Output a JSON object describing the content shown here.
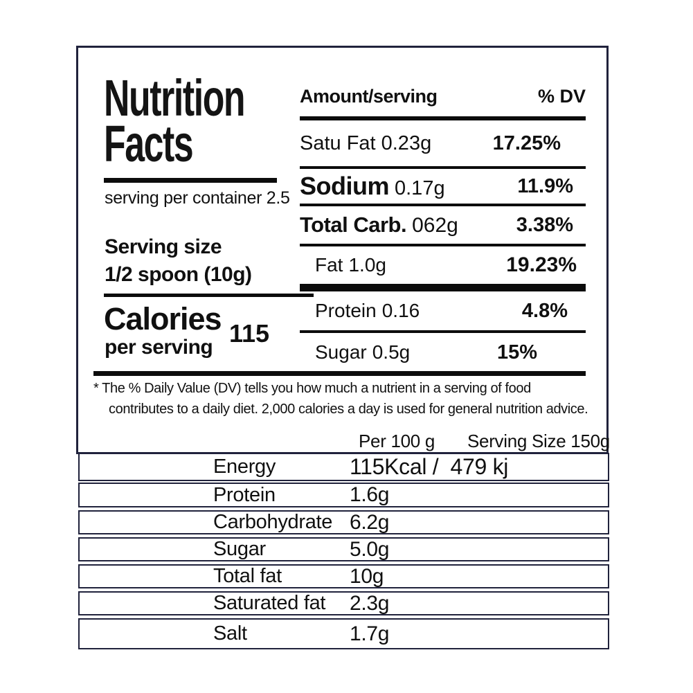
{
  "label": {
    "title": "Nutrition\nFacts",
    "servings_per_container": "serving per container 2.5",
    "serving_size_label": "Serving size",
    "serving_size_value": "1/2 spoon (10g)",
    "calories_label": "Calories",
    "calories_subtitle": "per serving",
    "calories_value": "115",
    "amount_header": "Amount/serving",
    "dv_header": "% DV",
    "rows": [
      {
        "name": "Satu Fat",
        "amount": "0.23g",
        "dv": "17.25%"
      },
      {
        "name": "Sodium",
        "amount": "0.17g",
        "dv": "11.9%"
      },
      {
        "name": "Total Carb.",
        "amount": "062g",
        "dv": "3.38%"
      },
      {
        "name": "Fat",
        "amount": "1.0g",
        "dv": "19.23%"
      },
      {
        "name": "Protein",
        "amount": "0.16",
        "dv": "4.8%"
      },
      {
        "name": "Sugar",
        "amount": "0.5g",
        "dv": "15%"
      }
    ],
    "footnote_line1": "* The % Daily Value (DV) tells you how much a nutrient in a serving of food",
    "footnote_line2": "contributes to a daily diet. 2,000 calories a day is used for general nutrition advice."
  },
  "per100_table": {
    "col1_header": "Per 100 g",
    "col2_header": "Serving Size 150g",
    "rows": [
      {
        "name": "Energy",
        "value": "115Kcal /  479 kj"
      },
      {
        "name": "Protein",
        "value": "1.6g"
      },
      {
        "name": "Carbohydrate",
        "value": "6.2g"
      },
      {
        "name": "Sugar",
        "value": "5.0g"
      },
      {
        "name": "Total fat",
        "value": "10g"
      },
      {
        "name": "Saturated fat",
        "value": "2.3g"
      },
      {
        "name": "Salt",
        "value": "1.7g"
      }
    ]
  },
  "colors": {
    "border_navy": "#20223c",
    "rule_black": "#0c0c0c",
    "text": "#101010"
  }
}
